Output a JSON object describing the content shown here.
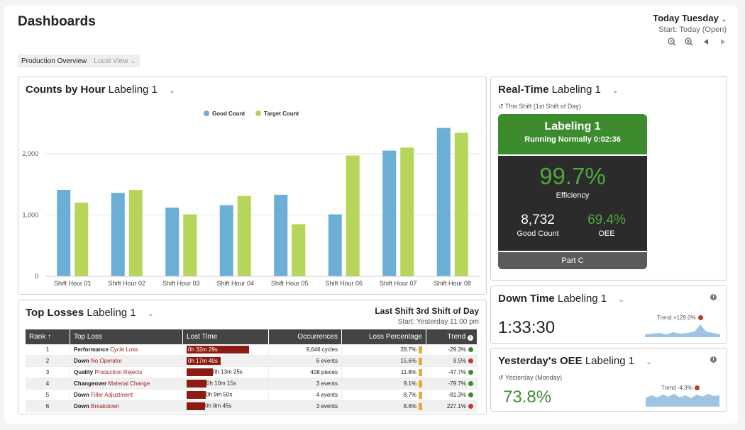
{
  "header": {
    "title": "Dashboards",
    "date_main": "Today Tuesday",
    "date_sub": "Start: Today (Open)"
  },
  "viewbar": {
    "active": "Production Overview",
    "inactive": "Local View"
  },
  "counts_card": {
    "title_bold": "Counts by Hour",
    "title_rest": "Labeling 1"
  },
  "chart_data": {
    "type": "bar",
    "categories": [
      "Shift Hour 01",
      "Shift Hour 02",
      "Shift Hour 03",
      "Shift Hour 04",
      "Shift Hour 05",
      "Shift Hour 06",
      "Shift Hour 07",
      "Shift Hour 08"
    ],
    "series": [
      {
        "name": "Good Count",
        "color": "#6baed6",
        "values": [
          1410,
          1360,
          1120,
          1160,
          1330,
          1010,
          2050,
          2420
        ]
      },
      {
        "name": "Target Count",
        "color": "#b5d65a",
        "values": [
          1200,
          1410,
          1010,
          1310,
          850,
          1970,
          2100,
          2340
        ]
      }
    ],
    "ylim": [
      0,
      2600
    ],
    "yticks": [
      0,
      1000,
      2000
    ],
    "ytick_labels": [
      "0",
      "1,000",
      "2,000"
    ],
    "legend": "top",
    "grid": true
  },
  "realtime": {
    "title_bold": "Real-Time",
    "title_rest": "Labeling 1",
    "subtitle": "This Shift (1st Shift of Day)",
    "machine": "Labeling 1",
    "status": "Running Normally 0:02:36",
    "efficiency": "99.7%",
    "efficiency_label": "Efficiency",
    "good_count": "8,732",
    "good_count_label": "Good Count",
    "oee": "69.4%",
    "oee_label": "OEE",
    "part": "Part C"
  },
  "downtime": {
    "title_bold": "Down Time",
    "title_rest": "Labeling 1",
    "value": "1:33:30",
    "trend": "Trend +129.0%"
  },
  "yoee": {
    "title_bold": "Yesterday's OEE",
    "title_rest": "Labeling 1",
    "subtitle": "Yesterday (Monday)",
    "value": "73.8%",
    "trend": "Trend -4.3%"
  },
  "losses": {
    "title_bold": "Top Losses",
    "title_rest": "Labeling 1",
    "shift_title": "Last Shift 3rd Shift of Day",
    "shift_start": "Start: Yesterday 11:00 pm",
    "columns": [
      "Rank",
      "Top Loss",
      "Lost Time",
      "Occurrences",
      "Loss Percentage",
      "Trend"
    ],
    "rows": [
      {
        "rank": "1",
        "cat": "Performance",
        "reason": "Cycle Loss",
        "time": "0h 32m 29s",
        "frac": 1.0,
        "occ": "9,646 cycles",
        "pct": "28.7%",
        "trend": "-29.3%",
        "tcolor": "#3c8c2f"
      },
      {
        "rank": "2",
        "cat": "Down",
        "reason": "No Operator",
        "time": "0h 17m 40s",
        "frac": 0.55,
        "occ": "6 events",
        "pct": "15.6%",
        "trend": "9.5%",
        "tcolor": "#c0392b"
      },
      {
        "rank": "3",
        "cat": "Quality",
        "reason": "Production Rejects",
        "time": "0h 13m 25s",
        "frac": 0.42,
        "occ": "408 pieces",
        "pct": "11.8%",
        "trend": "-47.7%",
        "tcolor": "#3c8c2f"
      },
      {
        "rank": "4",
        "cat": "Changeover",
        "reason": "Material Change",
        "time": "0h 10m 15s",
        "frac": 0.32,
        "occ": "3 events",
        "pct": "9.1%",
        "trend": "-79.7%",
        "tcolor": "#3c8c2f"
      },
      {
        "rank": "5",
        "cat": "Down",
        "reason": "Filler Adjustment",
        "time": "0h 9m 50s",
        "frac": 0.31,
        "occ": "4 events",
        "pct": "8.7%",
        "trend": "-81.3%",
        "tcolor": "#3c8c2f"
      },
      {
        "rank": "6",
        "cat": "Down",
        "reason": "Breakdown",
        "time": "0h 9m 45s",
        "frac": 0.3,
        "occ": "3 events",
        "pct": "8.6%",
        "trend": "227.1%",
        "tcolor": "#c0392b"
      }
    ]
  },
  "colors": {
    "accent_green": "#3c8c2f",
    "bar_red": "#8c1c13",
    "pct_orange": "#e8a93b",
    "good_blue": "#6baed6",
    "target_green": "#b5d65a"
  },
  "icons": [
    "chevron-down-icon",
    "zoom-out-icon",
    "zoom-in-icon",
    "prev-icon",
    "next-icon",
    "info-icon",
    "history-icon",
    "sort-up-icon"
  ]
}
